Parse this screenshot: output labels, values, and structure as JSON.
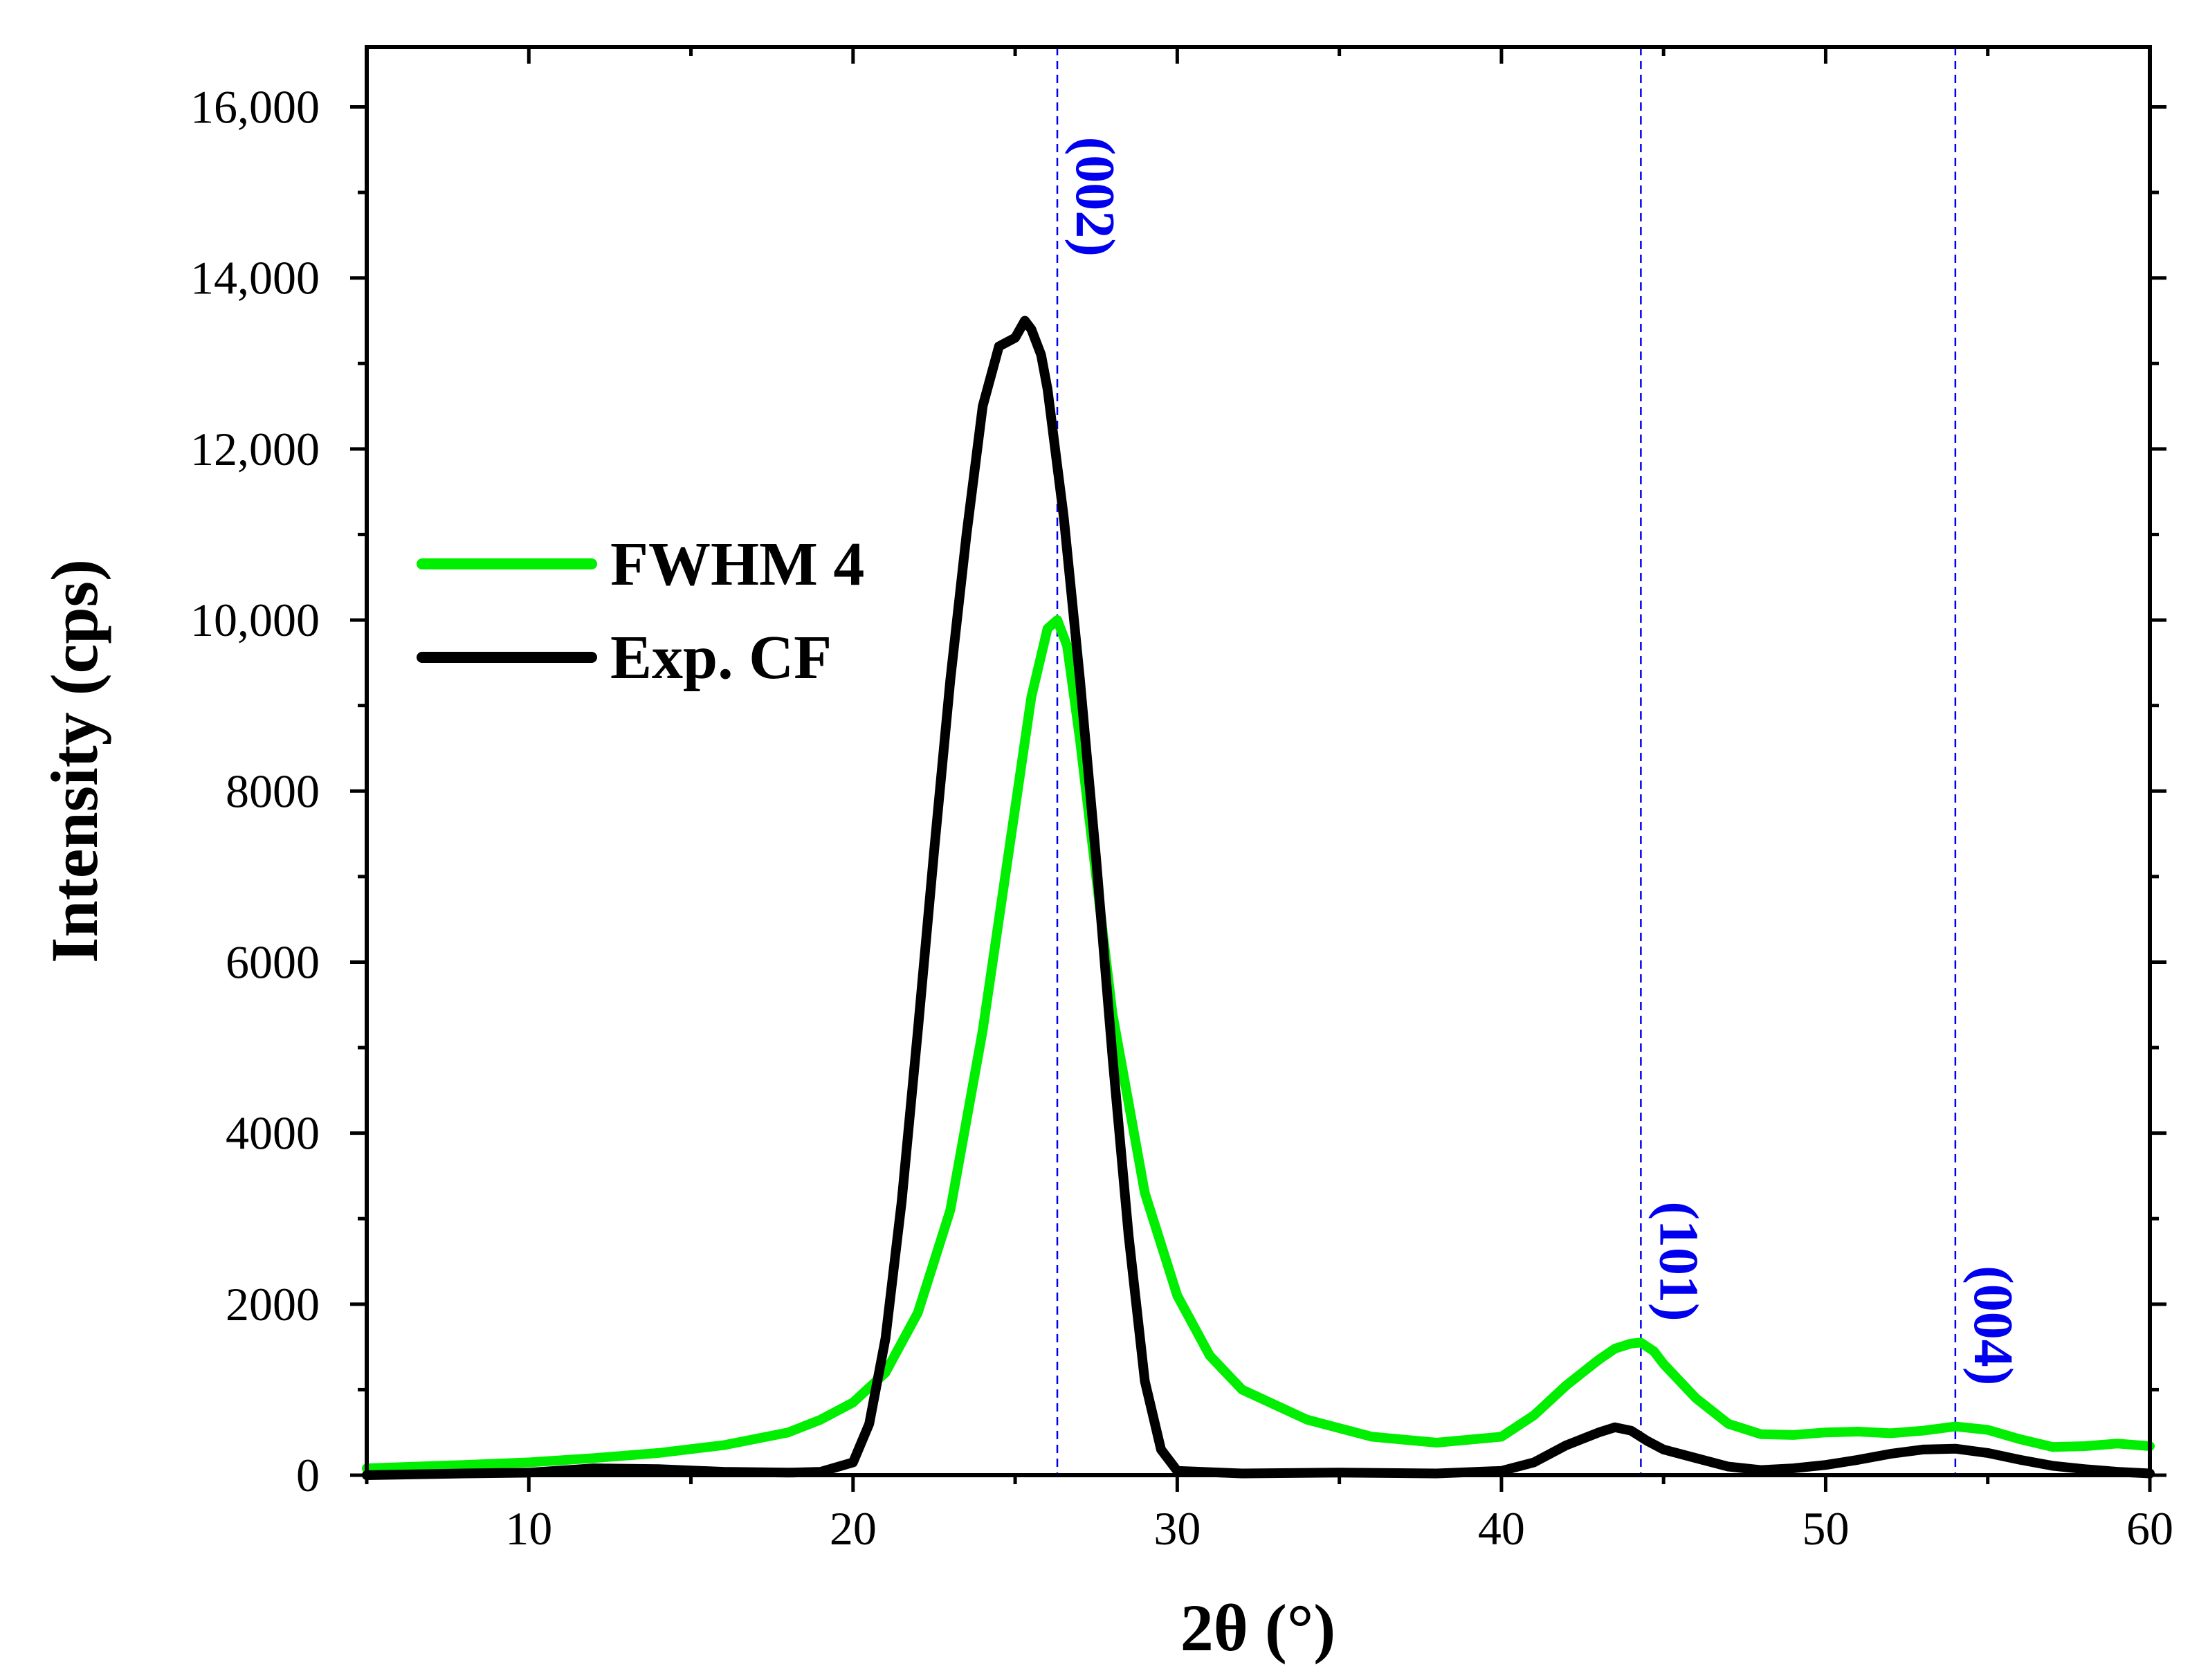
{
  "chart_data": {
    "type": "line",
    "title": "",
    "xlabel": "2θ (°)",
    "ylabel": "Intensity (cps)",
    "xlim": [
      5,
      60
    ],
    "ylim": [
      0,
      16700
    ],
    "x_ticks": [
      10,
      20,
      30,
      40,
      50,
      60
    ],
    "x_tick_labels": [
      "10",
      "20",
      "30",
      "40",
      "50",
      "60"
    ],
    "y_ticks": [
      0,
      2000,
      4000,
      6000,
      8000,
      10000,
      12000,
      14000,
      16000
    ],
    "y_tick_labels": [
      "0",
      "2000",
      "4000",
      "6000",
      "8000",
      "10,000",
      "12,000",
      "14,000",
      "16,000"
    ],
    "grid": false,
    "legend_position": "middle-left",
    "series": [
      {
        "name": "FWHM 4",
        "color": "#00ee00",
        "x": [
          5,
          8,
          10,
          12,
          14,
          16,
          18,
          19,
          20,
          21,
          22,
          23,
          24,
          25,
          25.5,
          26,
          26.3,
          26.6,
          27,
          27.5,
          28,
          29,
          30,
          31,
          32,
          34,
          36,
          38,
          40,
          41,
          42,
          43,
          43.5,
          44,
          44.3,
          44.7,
          45,
          46,
          47,
          48,
          49,
          50,
          51,
          52,
          53,
          54,
          55,
          56,
          57,
          58,
          59,
          60
        ],
        "y": [
          80,
          120,
          150,
          200,
          260,
          350,
          500,
          650,
          850,
          1200,
          1900,
          3100,
          5200,
          7800,
          9100,
          9900,
          10000,
          9700,
          8600,
          7000,
          5400,
          3300,
          2100,
          1400,
          1000,
          650,
          450,
          380,
          450,
          700,
          1050,
          1350,
          1480,
          1540,
          1550,
          1450,
          1300,
          900,
          600,
          480,
          470,
          500,
          510,
          490,
          520,
          570,
          530,
          420,
          330,
          340,
          370,
          340
        ]
      },
      {
        "name": "Exp. CF",
        "color": "#000000",
        "x": [
          5,
          8,
          10,
          12,
          14,
          16,
          18,
          19,
          20,
          20.5,
          21,
          21.5,
          22,
          22.5,
          23,
          23.5,
          24,
          24.5,
          25,
          25.3,
          25.5,
          25.8,
          26,
          26.5,
          27,
          27.5,
          28,
          28.5,
          29,
          29.5,
          30,
          32,
          35,
          38,
          40,
          41,
          42,
          43,
          43.5,
          44,
          44.5,
          45,
          46,
          47,
          48,
          49,
          50,
          51,
          52,
          53,
          54,
          55,
          56,
          57,
          58,
          59,
          60
        ],
        "y": [
          0,
          20,
          30,
          80,
          70,
          40,
          30,
          40,
          150,
          600,
          1600,
          3200,
          5200,
          7300,
          9300,
          11000,
          12500,
          13200,
          13300,
          13500,
          13400,
          13100,
          12700,
          11200,
          9300,
          7200,
          4900,
          2800,
          1100,
          300,
          50,
          20,
          30,
          20,
          50,
          150,
          350,
          500,
          560,
          520,
          400,
          300,
          200,
          100,
          60,
          80,
          120,
          180,
          250,
          300,
          310,
          260,
          180,
          110,
          70,
          40,
          20
        ]
      }
    ],
    "annotations": [
      {
        "label": "(002)",
        "x": 26.3,
        "y_label_center": 14950,
        "color": "#0000ee"
      },
      {
        "label": "(101)",
        "x": 44.3,
        "y_label_center": 2500,
        "color": "#0000ee"
      },
      {
        "label": "(004)",
        "x": 54.0,
        "y_label_center": 1750,
        "color": "#0000ee"
      }
    ]
  }
}
